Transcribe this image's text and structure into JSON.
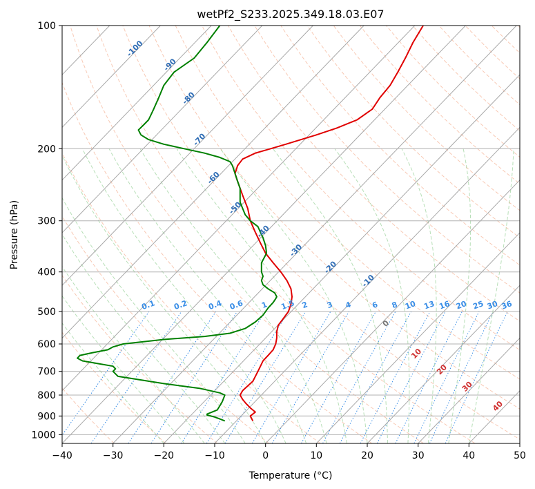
{
  "chart_data": {
    "type": "line",
    "diagram": "skew-t",
    "title": "wetPf2_S233.2025.349.18.03.E07",
    "xlabel": "Temperature (°C)",
    "ylabel": "Pressure (hPa)",
    "xlim": [
      -40,
      50
    ],
    "ylim": [
      1050,
      100
    ],
    "y_scale": "log",
    "grid": true,
    "x_ticks": [
      "−40",
      "−30",
      "−20",
      "−10",
      "0",
      "10",
      "20",
      "30",
      "40",
      "50"
    ],
    "y_ticks": [
      "100",
      "200",
      "300",
      "400",
      "500",
      "600",
      "700",
      "800",
      "900",
      "1000"
    ],
    "series": [
      {
        "color": "#e00000",
        "points": [
          [
            -2.5,
            925
          ],
          [
            -3.0,
            900
          ],
          [
            -2.0,
            880
          ],
          [
            -3.0,
            860
          ],
          [
            -3.8,
            840
          ],
          [
            -4.5,
            820
          ],
          [
            -5.0,
            800
          ],
          [
            -4.5,
            780
          ],
          [
            -3.5,
            760
          ],
          [
            -2.5,
            740
          ],
          [
            -2.0,
            720
          ],
          [
            -1.5,
            700
          ],
          [
            -1.0,
            680
          ],
          [
            -0.5,
            660
          ],
          [
            0.5,
            640
          ],
          [
            1.5,
            620
          ],
          [
            2.0,
            600
          ],
          [
            2.2,
            580
          ],
          [
            2.2,
            560
          ],
          [
            2.5,
            540
          ],
          [
            3.5,
            520
          ],
          [
            4.5,
            500
          ],
          [
            5.0,
            480
          ],
          [
            5.2,
            460
          ],
          [
            5.0,
            440
          ],
          [
            4.2,
            420
          ],
          [
            3.0,
            400
          ],
          [
            1.5,
            380
          ],
          [
            0.0,
            360
          ],
          [
            -1.0,
            340
          ],
          [
            -2.0,
            320
          ],
          [
            -3.0,
            300
          ],
          [
            -3.5,
            280
          ],
          [
            -4.5,
            260
          ],
          [
            -5.5,
            240
          ],
          [
            -6.0,
            230
          ],
          [
            -5.5,
            220
          ],
          [
            -4.5,
            212
          ],
          [
            -2.0,
            205
          ],
          [
            1.0,
            200
          ],
          [
            4.0,
            195
          ],
          [
            10.0,
            185
          ],
          [
            14.0,
            178
          ],
          [
            18.0,
            170
          ],
          [
            21.0,
            160
          ],
          [
            22.5,
            150
          ],
          [
            24.5,
            140
          ],
          [
            26.0,
            130
          ],
          [
            27.5,
            120
          ],
          [
            29.0,
            110
          ],
          [
            31.0,
            100
          ]
        ]
      },
      {
        "color": "#008000",
        "points": [
          [
            -8.0,
            925
          ],
          [
            -9.0,
            915
          ],
          [
            -10.0,
            905
          ],
          [
            -11.5,
            895
          ],
          [
            -11.5,
            890
          ],
          [
            -10.5,
            880
          ],
          [
            -9.5,
            870
          ],
          [
            -9.0,
            850
          ],
          [
            -8.5,
            830
          ],
          [
            -8.0,
            800
          ],
          [
            -9.0,
            790
          ],
          [
            -13.0,
            770
          ],
          [
            -20.0,
            750
          ],
          [
            -29.0,
            720
          ],
          [
            -30.0,
            700
          ],
          [
            -29.5,
            690
          ],
          [
            -30.0,
            680
          ],
          [
            -33.0,
            670
          ],
          [
            -36.0,
            660
          ],
          [
            -37.0,
            650
          ],
          [
            -36.5,
            640
          ],
          [
            -34.0,
            630
          ],
          [
            -31.0,
            620
          ],
          [
            -30.0,
            610
          ],
          [
            -28.0,
            600
          ],
          [
            -20.0,
            585
          ],
          [
            -12.0,
            575
          ],
          [
            -7.0,
            565
          ],
          [
            -4.0,
            550
          ],
          [
            -2.0,
            530
          ],
          [
            -0.5,
            510
          ],
          [
            0.5,
            490
          ],
          [
            1.5,
            475
          ],
          [
            2.0,
            465
          ],
          [
            2.2,
            460
          ],
          [
            1.8,
            450
          ],
          [
            0.5,
            440
          ],
          [
            -0.5,
            430
          ],
          [
            -0.8,
            420
          ],
          [
            -0.5,
            410
          ],
          [
            -0.8,
            400
          ],
          [
            -0.8,
            380
          ],
          [
            0.2,
            360
          ],
          [
            0.0,
            345
          ],
          [
            -0.5,
            330
          ],
          [
            -1.0,
            320
          ],
          [
            -1.5,
            310
          ],
          [
            -3.0,
            300
          ],
          [
            -4.0,
            290
          ],
          [
            -4.5,
            280
          ],
          [
            -5.0,
            270
          ],
          [
            -5.0,
            260
          ],
          [
            -5.0,
            250
          ],
          [
            -5.5,
            240
          ],
          [
            -6.0,
            230
          ],
          [
            -6.5,
            220
          ],
          [
            -7.0,
            215
          ],
          [
            -9.0,
            210
          ],
          [
            -12.0,
            205
          ],
          [
            -16.0,
            200
          ],
          [
            -20.0,
            195
          ],
          [
            -23.0,
            190
          ],
          [
            -24.5,
            185
          ],
          [
            -25.0,
            180
          ],
          [
            -24.0,
            175
          ],
          [
            -23.0,
            170
          ],
          [
            -22.5,
            165
          ],
          [
            -22.0,
            160
          ],
          [
            -21.0,
            150
          ],
          [
            -20.0,
            140
          ],
          [
            -18.0,
            130
          ],
          [
            -14.0,
            120
          ],
          [
            -11.5,
            110
          ],
          [
            -9.0,
            100
          ]
        ]
      }
    ],
    "isotherm_labels": [
      {
        "text": "-100",
        "t": -100
      },
      {
        "text": "-90",
        "t": -90
      },
      {
        "text": "-80",
        "t": -80
      },
      {
        "text": "-70",
        "t": -70
      },
      {
        "text": "-60",
        "t": -60
      },
      {
        "text": "-50",
        "t": -50
      },
      {
        "text": "-40",
        "t": -40
      },
      {
        "text": "-30",
        "t": -30
      },
      {
        "text": "-20",
        "t": -20
      },
      {
        "text": "-10",
        "t": -10
      }
    ],
    "isotherm_label_color": "#2f6db5",
    "mixing_ratio_labels": [
      "0.1",
      "0.2",
      "0.4",
      "0.6",
      "1",
      "1.5",
      "2",
      "3",
      "4",
      "6",
      "8",
      "10",
      "13",
      "16",
      "20",
      "25",
      "30",
      "36"
    ],
    "mixing_ratio_color": "#3a8ee6",
    "moist_adiabat_labels": [
      {
        "text": "0",
        "color": "#777777"
      },
      {
        "text": "10",
        "color": "#d03030"
      },
      {
        "text": "20",
        "color": "#d03030"
      },
      {
        "text": "30",
        "color": "#d03030"
      },
      {
        "text": "40",
        "color": "#d03030"
      }
    ]
  }
}
